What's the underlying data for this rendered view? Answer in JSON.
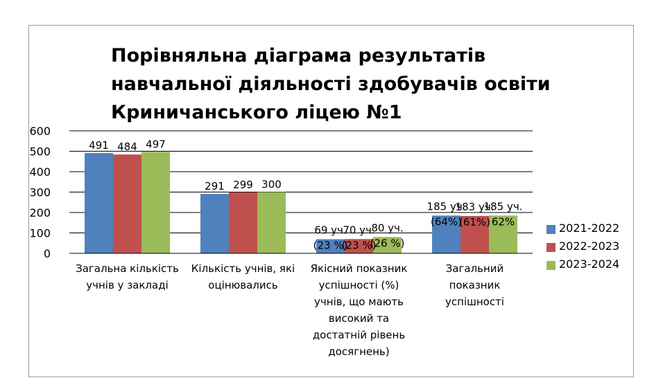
{
  "chart_data": {
    "type": "bar",
    "title": [
      "Порівняльна діаграма результатів",
      "навчальної діяльності здобувачів освіти",
      "Криничанського ліцею №1"
    ],
    "categories": [
      [
        "Загальна кількість",
        "учнів у закладі"
      ],
      [
        "Кількість учнів, які",
        "оцінювались"
      ],
      [
        "Якісний показник",
        "успішності (%)",
        "учнів, що мають",
        "високий та",
        "достатній рівень",
        "досягнень)"
      ],
      [
        "Загальний",
        "показник",
        "успішності"
      ]
    ],
    "series": [
      {
        "name": "2021-2022",
        "color": "#4F81BD",
        "values": [
          491,
          291,
          69,
          185
        ],
        "labels": [
          [
            "491"
          ],
          [
            "291"
          ],
          [
            "69 уч.",
            "(23 %)"
          ],
          [
            "185 уч.",
            "(64%)"
          ]
        ]
      },
      {
        "name": "2022-2023",
        "color": "#C0504D",
        "values": [
          484,
          299,
          70,
          183
        ],
        "labels": [
          [
            "484"
          ],
          [
            "299"
          ],
          [
            "70 уч.",
            "(23 %)"
          ],
          [
            "183 уч.",
            "(61%)"
          ]
        ]
      },
      {
        "name": "2023-2024",
        "color": "#9BBB59",
        "values": [
          497,
          300,
          80,
          185
        ],
        "labels": [
          [
            "497"
          ],
          [
            "300"
          ],
          [
            "80 уч.",
            "(26 %)"
          ],
          [
            "185 уч.",
            "62%"
          ]
        ]
      }
    ],
    "ylim": [
      0,
      600
    ],
    "yticks": [
      "0",
      "100",
      "200",
      "300",
      "400",
      "500",
      "600"
    ],
    "grid": true,
    "legend_position": "right"
  }
}
